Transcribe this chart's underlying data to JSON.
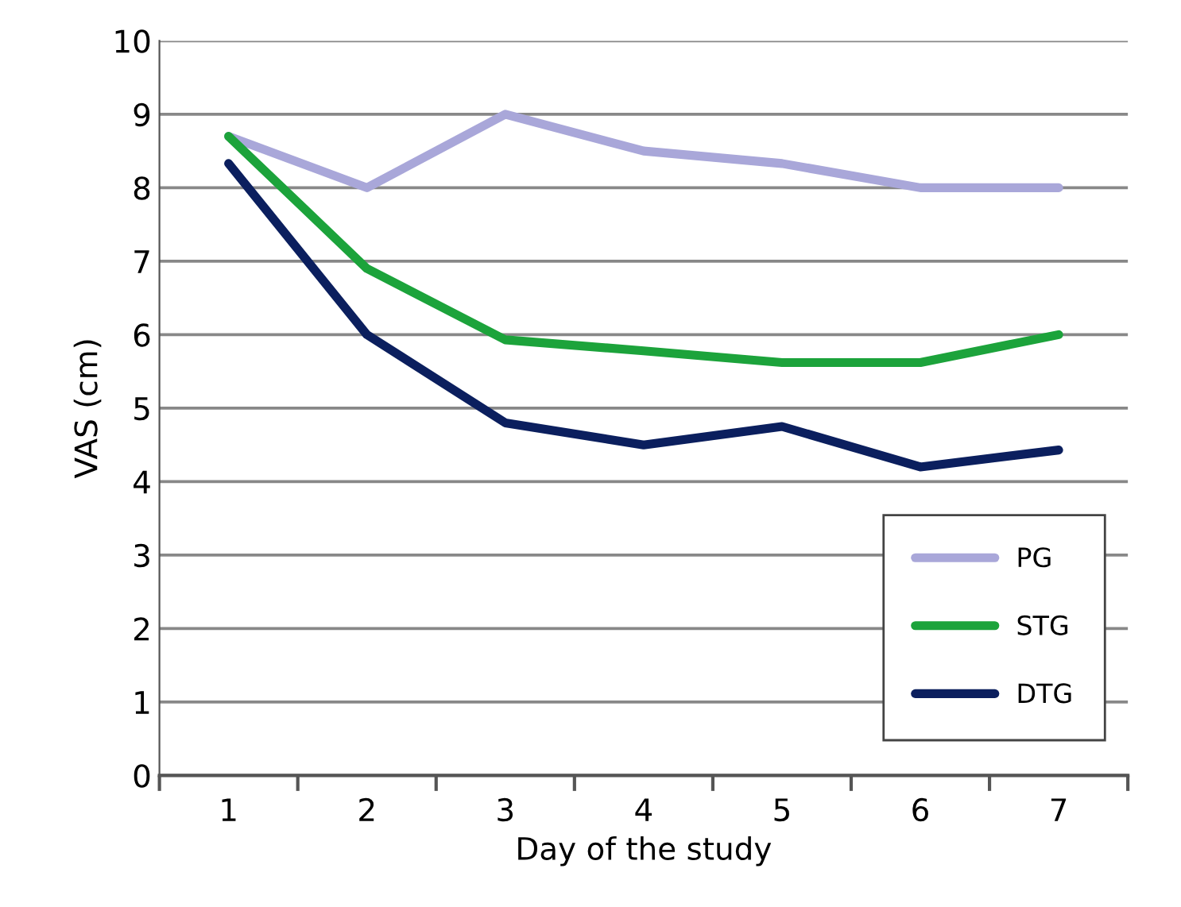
{
  "chart_data": {
    "type": "line",
    "xlabel": "Day of the study",
    "ylabel": "VAS (cm)",
    "categories": [
      "1",
      "2",
      "3",
      "4",
      "5",
      "6",
      "7"
    ],
    "series": [
      {
        "name": "PG",
        "color": "#a9a7d9",
        "values": [
          8.7,
          8.0,
          9.0,
          8.5,
          8.33,
          8.0,
          8.0
        ]
      },
      {
        "name": "STG",
        "color": "#1ca33b",
        "values": [
          8.7,
          6.9,
          5.93,
          5.78,
          5.62,
          5.62,
          6.0
        ]
      },
      {
        "name": "DTG",
        "color": "#0b1f5e",
        "values": [
          8.33,
          6.0,
          4.8,
          4.5,
          4.75,
          4.2,
          4.43
        ]
      }
    ],
    "ylim": [
      0,
      10
    ],
    "yticks": [
      0,
      1,
      2,
      3,
      4,
      5,
      6,
      7,
      8,
      9,
      10
    ],
    "grid": "y",
    "legend": "bottom right",
    "marker": "none",
    "line_style": "solid"
  }
}
